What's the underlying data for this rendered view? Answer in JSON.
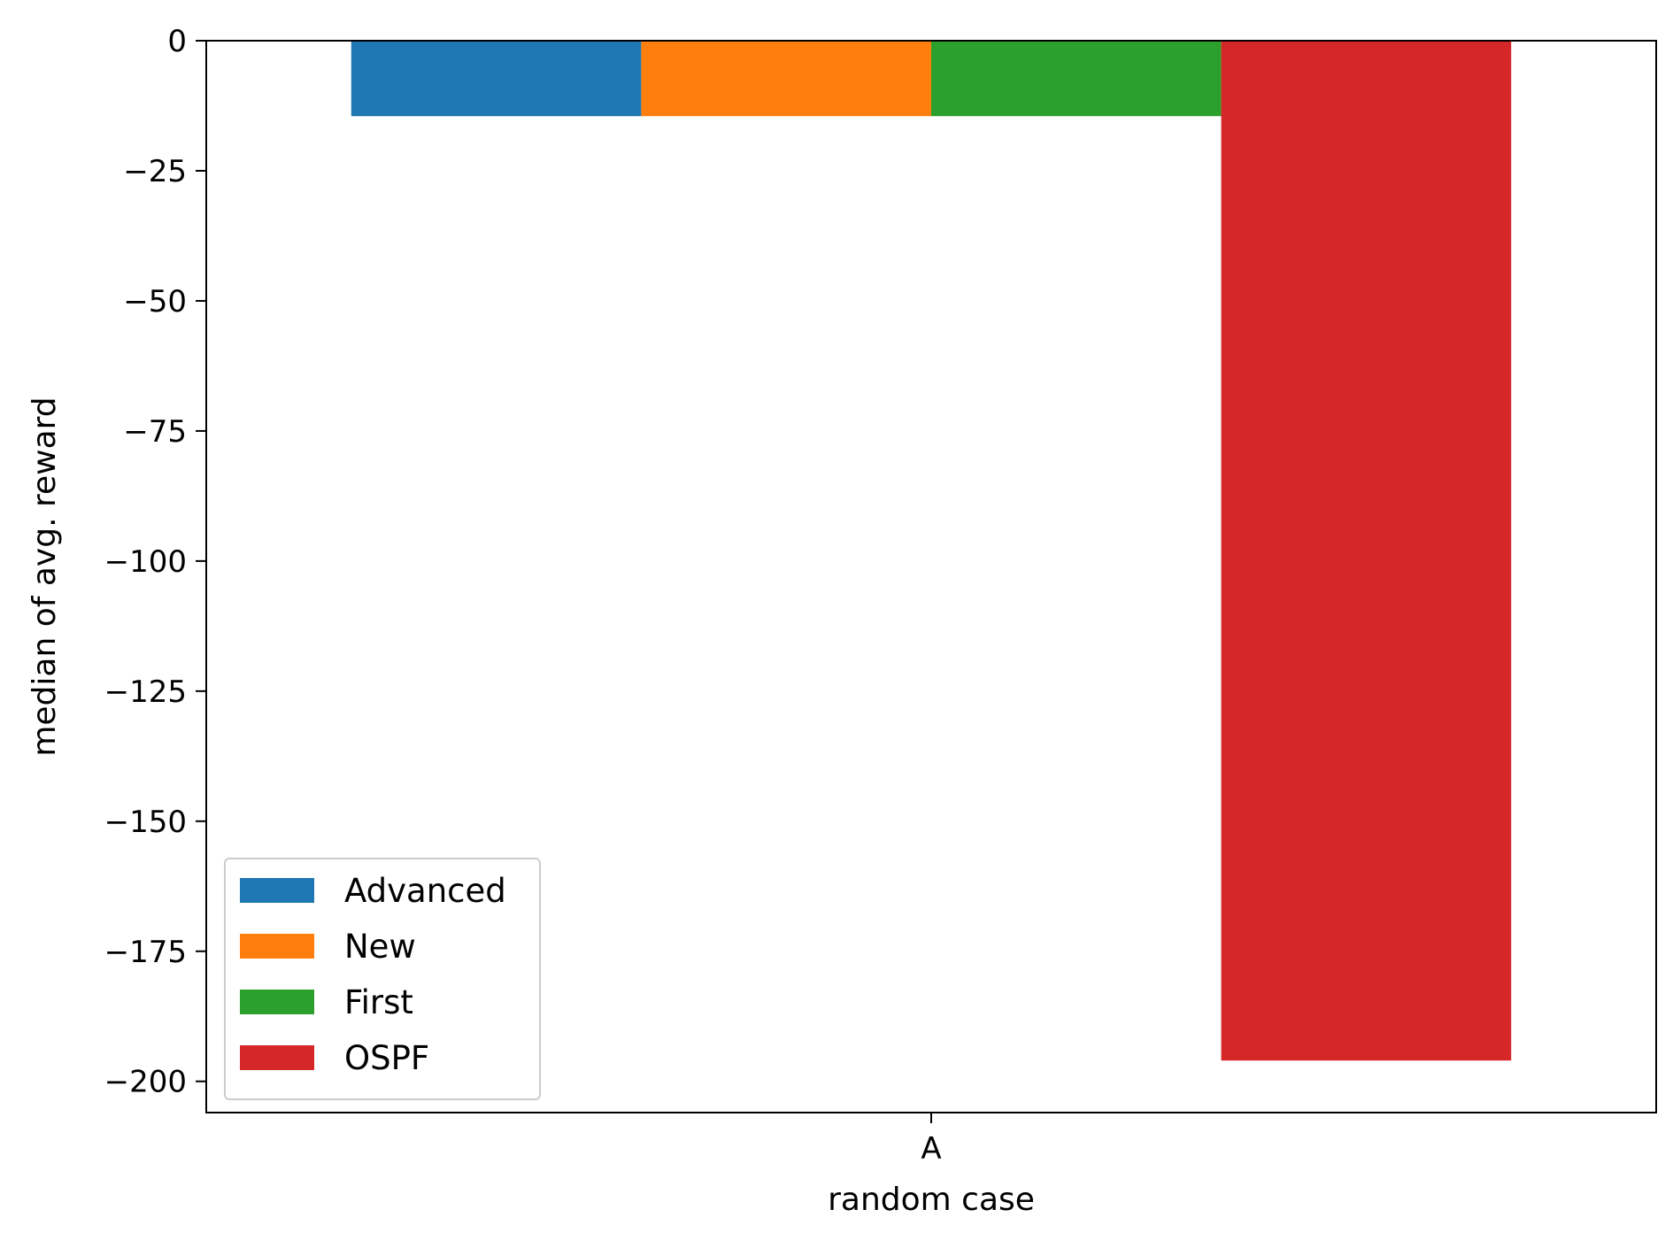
{
  "chart_data": {
    "type": "bar",
    "categories": [
      "A"
    ],
    "series": [
      {
        "name": "Advanced",
        "values": [
          -14.5
        ],
        "color": "#1f77b4"
      },
      {
        "name": "New",
        "values": [
          -14.5
        ],
        "color": "#ff7f0e"
      },
      {
        "name": "First",
        "values": [
          -14.5
        ],
        "color": "#2ca02c"
      },
      {
        "name": "OSPF",
        "values": [
          -196
        ],
        "color": "#d62728"
      }
    ],
    "title": "",
    "xlabel": "random case",
    "ylabel": "median of avg. reward",
    "ylim": [
      -206,
      0
    ],
    "yticks": [
      0,
      -25,
      -50,
      -75,
      -100,
      -125,
      -150,
      -175,
      -200
    ],
    "ytick_labels": [
      "0",
      "−25",
      "−50",
      "−75",
      "−100",
      "−125",
      "−150",
      "−175",
      "−200"
    ],
    "grid": false,
    "legend_position": "lower-left"
  }
}
